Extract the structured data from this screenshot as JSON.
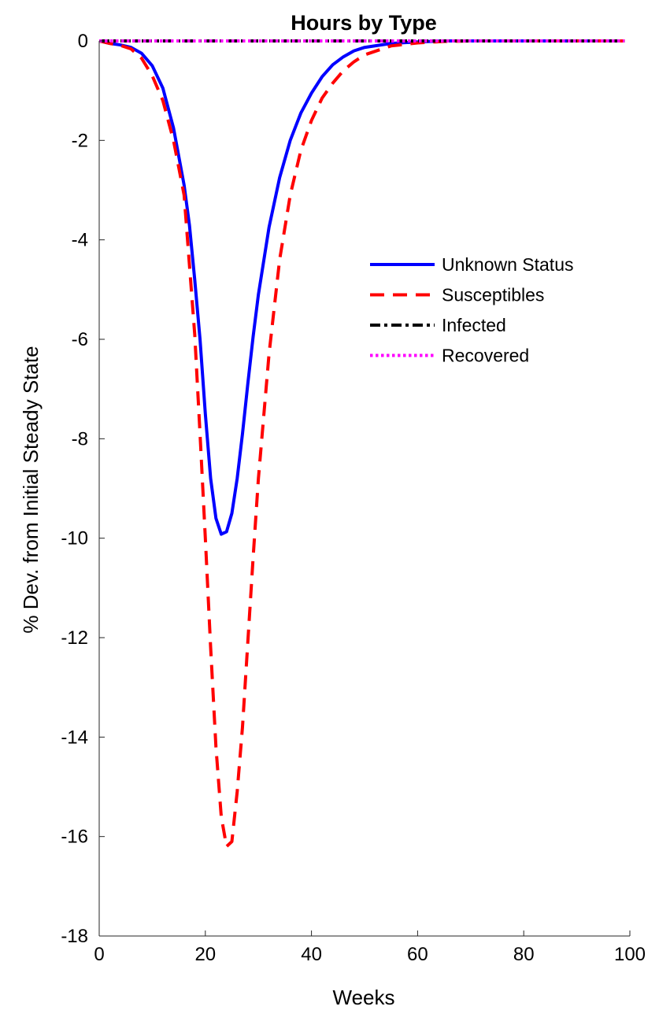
{
  "chart_data": {
    "type": "line",
    "title": "Hours by Type",
    "xlabel": "Weeks",
    "ylabel": "% Dev. from Initial Steady State",
    "xlim": [
      0,
      100
    ],
    "ylim": [
      -18,
      0
    ],
    "xticks": [
      0,
      20,
      40,
      60,
      80,
      100
    ],
    "yticks": [
      0,
      -2,
      -4,
      -6,
      -8,
      -10,
      -12,
      -14,
      -16,
      -18
    ],
    "grid": false,
    "legend_position": "right",
    "series": [
      {
        "name": "Unknown Status",
        "color": "#0000ff",
        "style": "solid",
        "x": [
          0,
          2,
          4,
          6,
          8,
          10,
          12,
          14,
          16,
          17,
          18,
          19,
          20,
          21,
          22,
          23,
          24,
          25,
          26,
          27,
          28,
          29,
          30,
          32,
          34,
          36,
          38,
          40,
          42,
          44,
          46,
          48,
          50,
          55,
          60,
          65,
          70,
          80,
          90,
          99
        ],
        "y": [
          0,
          -0.05,
          -0.08,
          -0.13,
          -0.25,
          -0.5,
          -0.95,
          -1.75,
          -2.9,
          -3.7,
          -4.8,
          -6.0,
          -7.5,
          -8.8,
          -9.6,
          -9.92,
          -9.87,
          -9.5,
          -8.8,
          -7.9,
          -6.9,
          -5.95,
          -5.1,
          -3.75,
          -2.75,
          -2.0,
          -1.45,
          -1.05,
          -0.72,
          -0.48,
          -0.32,
          -0.2,
          -0.13,
          -0.05,
          -0.02,
          0,
          0,
          0,
          0,
          0
        ]
      },
      {
        "name": "Susceptibles",
        "color": "#ff0000",
        "style": "dashed",
        "x": [
          0,
          2,
          4,
          6,
          8,
          10,
          12,
          14,
          16,
          17,
          18,
          19,
          20,
          21,
          22,
          23,
          24,
          25,
          26,
          27,
          28,
          29,
          30,
          32,
          34,
          36,
          38,
          40,
          42,
          44,
          46,
          48,
          50,
          55,
          60,
          65,
          70,
          80,
          90,
          99
        ],
        "y": [
          0,
          -0.05,
          -0.09,
          -0.16,
          -0.35,
          -0.7,
          -1.2,
          -2.0,
          -3.1,
          -4.5,
          -5.9,
          -7.9,
          -10.0,
          -12.2,
          -14.2,
          -15.6,
          -16.2,
          -16.1,
          -15.1,
          -13.8,
          -12.1,
          -10.4,
          -8.8,
          -6.3,
          -4.4,
          -3.1,
          -2.2,
          -1.6,
          -1.15,
          -0.85,
          -0.6,
          -0.42,
          -0.28,
          -0.1,
          -0.04,
          -0.01,
          0,
          0,
          0,
          0
        ]
      },
      {
        "name": "Infected",
        "color": "#000000",
        "style": "dashdot",
        "x": [
          0,
          99
        ],
        "y": [
          0,
          0
        ]
      },
      {
        "name": "Recovered",
        "color": "#ff00ff",
        "style": "dotted",
        "x": [
          0,
          99
        ],
        "y": [
          0,
          0
        ]
      }
    ]
  }
}
